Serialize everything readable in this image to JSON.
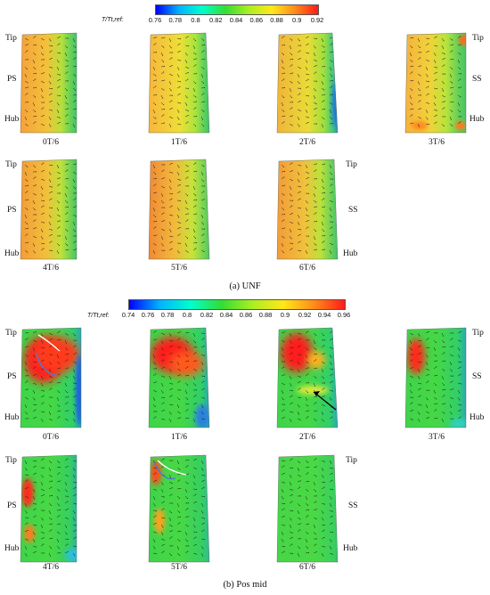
{
  "colors": {
    "cmap": [
      "#0000ff",
      "#00b4ff",
      "#00ffcc",
      "#33dd33",
      "#aaee22",
      "#ffe81a",
      "#ff8c1a",
      "#ff1a1a"
    ]
  },
  "section_a": {
    "colorbar_title": "T/Tt,ref:",
    "ticks": [
      "0.76",
      "0.78",
      "0.8",
      "0.82",
      "0.84",
      "0.86",
      "0.88",
      "0.9",
      "0.92"
    ],
    "range": [
      0.76,
      0.92
    ],
    "labels": {
      "tip": "Tip",
      "ps": "PS",
      "hub": "Hub",
      "ss": "SS"
    },
    "times": [
      "0T/6",
      "1T/6",
      "2T/6",
      "3T/6",
      "4T/6",
      "5T/6",
      "6T/6"
    ],
    "caption": "(a) UNF"
  },
  "section_b": {
    "colorbar_title": "T/Tt,ref:",
    "ticks": [
      "0.74",
      "0.76",
      "0.78",
      "0.8",
      "0.82",
      "0.84",
      "0.86",
      "0.88",
      "0.9",
      "0.92",
      "0.94",
      "0.96"
    ],
    "range": [
      0.74,
      0.96
    ],
    "labels": {
      "tip": "Tip",
      "ps": "PS",
      "hub": "Hub",
      "ss": "SS"
    },
    "times": [
      "0T/6",
      "1T/6",
      "2T/6",
      "3T/6",
      "4T/6",
      "5T/6",
      "6T/6"
    ],
    "caption": "(b) Pos mid"
  }
}
